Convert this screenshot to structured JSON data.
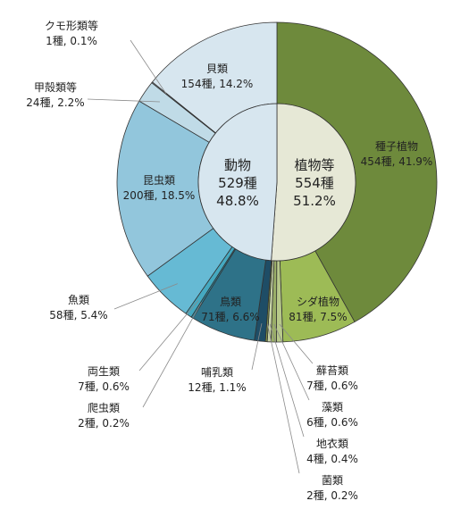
{
  "chart_data": {
    "type": "pie",
    "inner": [
      {
        "name": "動物",
        "line2": "529種",
        "line3": "48.8%",
        "value": 529,
        "percent": 48.8,
        "color": "#d7e6ef"
      },
      {
        "name": "植物等",
        "line2": "554種",
        "line3": "51.2%",
        "value": 554,
        "percent": 51.2,
        "color": "#e6e8d6"
      }
    ],
    "outer": [
      {
        "name": "種子植物",
        "stat": "454種, 41.9%",
        "value": 454,
        "percent": 41.9,
        "color": "#6e8a3c"
      },
      {
        "name": "シダ植物",
        "stat": "81種, 7.5%",
        "value": 81,
        "percent": 7.5,
        "color": "#9dbb56"
      },
      {
        "name": "蘚苔類",
        "stat": "7種, 0.6%",
        "value": 7,
        "percent": 0.6,
        "color": "#b7c98a"
      },
      {
        "name": "藻類",
        "stat": "6種, 0.6%",
        "value": 6,
        "percent": 0.6,
        "color": "#9aae68"
      },
      {
        "name": "地衣類",
        "stat": "4種, 0.4%",
        "value": 4,
        "percent": 0.4,
        "color": "#c8d4a6"
      },
      {
        "name": "菌類",
        "stat": "2種, 0.2%",
        "value": 2,
        "percent": 0.2,
        "color": "#7f9448"
      },
      {
        "name": "哺乳類",
        "stat": "12種, 1.1%",
        "value": 12,
        "percent": 1.1,
        "color": "#1e4d66"
      },
      {
        "name": "鳥類",
        "stat": "71種, 6.6%",
        "value": 71,
        "percent": 6.6,
        "color": "#2e7288"
      },
      {
        "name": "爬虫類",
        "stat": "2種, 0.2%",
        "value": 2,
        "percent": 0.2,
        "color": "#2a8fa8"
      },
      {
        "name": "両生類",
        "stat": "7種, 0.6%",
        "value": 7,
        "percent": 0.6,
        "color": "#45a9c0"
      },
      {
        "name": "魚類",
        "stat": "58種, 5.4%",
        "value": 58,
        "percent": 5.4,
        "color": "#66bad4"
      },
      {
        "name": "昆虫類",
        "stat": "200種, 18.5%",
        "value": 200,
        "percent": 18.5,
        "color": "#92c6dc"
      },
      {
        "name": "甲殻類等",
        "stat": "24種, 2.2%",
        "value": 24,
        "percent": 2.2,
        "color": "#c0dbe7"
      },
      {
        "name": "クモ形類等",
        "stat": "1種, 0.1%",
        "value": 1,
        "percent": 0.1,
        "color": "#cfe2ec"
      },
      {
        "name": "貝類",
        "stat": "154種, 14.2%",
        "value": 154,
        "percent": 14.2,
        "color": "#d7e6ef"
      }
    ]
  }
}
